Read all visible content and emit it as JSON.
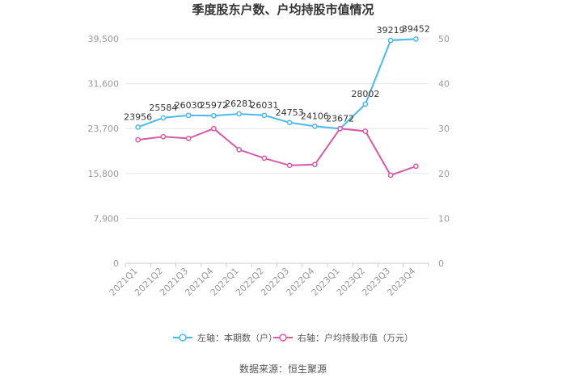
{
  "chart_data": {
    "type": "line",
    "title": "季度股东户数、户均持股市值情况",
    "categories": [
      "2021Q1",
      "2021Q2",
      "2021Q3",
      "2021Q4",
      "2022Q1",
      "2022Q2",
      "2022Q3",
      "2022Q4",
      "2023Q1",
      "2023Q2",
      "2023Q3",
      "2023Q4"
    ],
    "left_axis": {
      "ticks": [
        "0",
        "7,900",
        "15,800",
        "23,700",
        "31,600",
        "39,500"
      ],
      "ylim": [
        0,
        39500
      ]
    },
    "right_axis": {
      "ticks": [
        "0",
        "10",
        "20",
        "30",
        "40",
        "50"
      ],
      "ylim": [
        0,
        50
      ]
    },
    "series": [
      {
        "name": "左轴：本期数（户）",
        "axis": "left",
        "color": "#4db8ec",
        "values": [
          23956,
          25584,
          26030,
          25972,
          26281,
          26031,
          24753,
          24106,
          23672,
          28002,
          39219,
          39452
        ],
        "labels": [
          "23956",
          "25584",
          "26030",
          "25972",
          "26281",
          "26031",
          "24753",
          "24106",
          "23672",
          "28002",
          "39219",
          "39452"
        ]
      },
      {
        "name": "右轴：户均持股市值（万元）",
        "axis": "right",
        "color": "#d65aa8",
        "values": [
          27.5,
          28.2,
          27.8,
          30.0,
          25.3,
          23.4,
          21.8,
          22.0,
          30.0,
          29.4,
          19.6,
          21.6
        ]
      }
    ],
    "grid": true,
    "legend_position": "bottom"
  },
  "source": "数据来源：恒生聚源"
}
